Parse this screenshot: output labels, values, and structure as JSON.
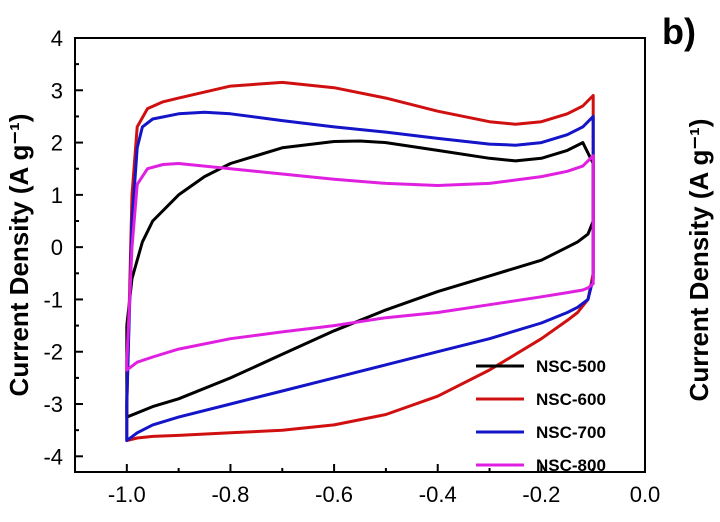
{
  "chart_data": {
    "type": "line",
    "title": "",
    "panel_label": "b)",
    "xlabel": "",
    "ylabel": "Current Density (A g⁻¹)",
    "ylabel_cut": "Current Density (A g⁻¹)",
    "xlim": [
      -1.1,
      0.0
    ],
    "ylim": [
      -4.3,
      4.0
    ],
    "x_ticks": [
      -1.0,
      -0.8,
      -0.6,
      -0.4,
      -0.2,
      0.0
    ],
    "x_tick_labels": [
      "-1.0",
      "-0.8",
      "-0.6",
      "-0.4",
      "-0.2",
      "0.0"
    ],
    "y_ticks": [
      -4,
      -3,
      -2,
      -1,
      0,
      1,
      2,
      3,
      4
    ],
    "y_tick_labels": [
      "-4",
      "-3",
      "-2",
      "-1",
      "0",
      "1",
      "2",
      "3",
      "4"
    ],
    "grid": false,
    "legend_position": "bottom-right",
    "series": [
      {
        "name": "NSC-500",
        "color": "#000000",
        "x": [
          -1.0,
          -0.99,
          -0.97,
          -0.95,
          -0.9,
          -0.85,
          -0.8,
          -0.7,
          -0.6,
          -0.55,
          -0.5,
          -0.4,
          -0.3,
          -0.25,
          -0.2,
          -0.15,
          -0.12,
          -0.1,
          -0.1,
          -0.11,
          -0.13,
          -0.15,
          -0.2,
          -0.3,
          -0.4,
          -0.5,
          -0.6,
          -0.7,
          -0.8,
          -0.9,
          -0.95,
          -1.0,
          -1.0
        ],
        "y": [
          -1.5,
          -0.6,
          0.1,
          0.5,
          1.0,
          1.35,
          1.6,
          1.9,
          2.02,
          2.03,
          2.0,
          1.85,
          1.7,
          1.65,
          1.7,
          1.85,
          2.0,
          1.6,
          0.5,
          0.25,
          0.1,
          0.0,
          -0.25,
          -0.55,
          -0.85,
          -1.2,
          -1.6,
          -2.05,
          -2.5,
          -2.9,
          -3.05,
          -3.25,
          -1.5
        ]
      },
      {
        "name": "NSC-600",
        "color": "#d01010",
        "x": [
          -1.0,
          -0.99,
          -0.98,
          -0.96,
          -0.93,
          -0.9,
          -0.8,
          -0.7,
          -0.6,
          -0.5,
          -0.4,
          -0.3,
          -0.25,
          -0.2,
          -0.15,
          -0.12,
          -0.1,
          -0.1,
          -0.11,
          -0.13,
          -0.15,
          -0.2,
          -0.3,
          -0.4,
          -0.5,
          -0.6,
          -0.7,
          -0.8,
          -0.9,
          -0.95,
          -0.98,
          -1.0,
          -1.0
        ],
        "y": [
          -3.0,
          1.0,
          2.3,
          2.65,
          2.78,
          2.85,
          3.08,
          3.15,
          3.05,
          2.85,
          2.6,
          2.4,
          2.35,
          2.4,
          2.55,
          2.7,
          2.9,
          -0.5,
          -1.0,
          -1.25,
          -1.4,
          -1.75,
          -2.35,
          -2.85,
          -3.2,
          -3.4,
          -3.5,
          -3.55,
          -3.6,
          -3.62,
          -3.65,
          -3.7,
          -3.0
        ]
      },
      {
        "name": "NSC-700",
        "color": "#1414c8",
        "x": [
          -1.0,
          -0.99,
          -0.98,
          -0.97,
          -0.95,
          -0.9,
          -0.85,
          -0.8,
          -0.7,
          -0.6,
          -0.5,
          -0.4,
          -0.3,
          -0.25,
          -0.2,
          -0.15,
          -0.12,
          -0.1,
          -0.1,
          -0.11,
          -0.13,
          -0.15,
          -0.2,
          -0.3,
          -0.4,
          -0.5,
          -0.6,
          -0.7,
          -0.8,
          -0.9,
          -0.95,
          -0.98,
          -1.0,
          -1.0
        ],
        "y": [
          -3.0,
          0.5,
          1.9,
          2.3,
          2.45,
          2.55,
          2.58,
          2.55,
          2.42,
          2.3,
          2.2,
          2.08,
          1.97,
          1.95,
          2.0,
          2.15,
          2.3,
          2.5,
          -0.6,
          -1.0,
          -1.15,
          -1.25,
          -1.45,
          -1.75,
          -2.0,
          -2.25,
          -2.5,
          -2.75,
          -3.0,
          -3.25,
          -3.4,
          -3.55,
          -3.7,
          -3.0
        ]
      },
      {
        "name": "NSC-800",
        "color": "#e020e0",
        "x": [
          -1.0,
          -0.99,
          -0.98,
          -0.96,
          -0.93,
          -0.9,
          -0.8,
          -0.7,
          -0.6,
          -0.5,
          -0.4,
          -0.3,
          -0.2,
          -0.15,
          -0.12,
          -0.1,
          -0.1,
          -0.11,
          -0.12,
          -0.15,
          -0.2,
          -0.3,
          -0.4,
          -0.5,
          -0.6,
          -0.7,
          -0.8,
          -0.9,
          -0.95,
          -0.98,
          -1.0,
          -1.0
        ],
        "y": [
          -2.2,
          0.0,
          1.2,
          1.5,
          1.58,
          1.6,
          1.5,
          1.4,
          1.3,
          1.22,
          1.18,
          1.22,
          1.35,
          1.45,
          1.55,
          1.75,
          -0.7,
          -0.78,
          -0.82,
          -0.87,
          -0.95,
          -1.1,
          -1.25,
          -1.35,
          -1.5,
          -1.62,
          -1.75,
          -1.95,
          -2.1,
          -2.2,
          -2.35,
          -2.2
        ]
      }
    ]
  }
}
